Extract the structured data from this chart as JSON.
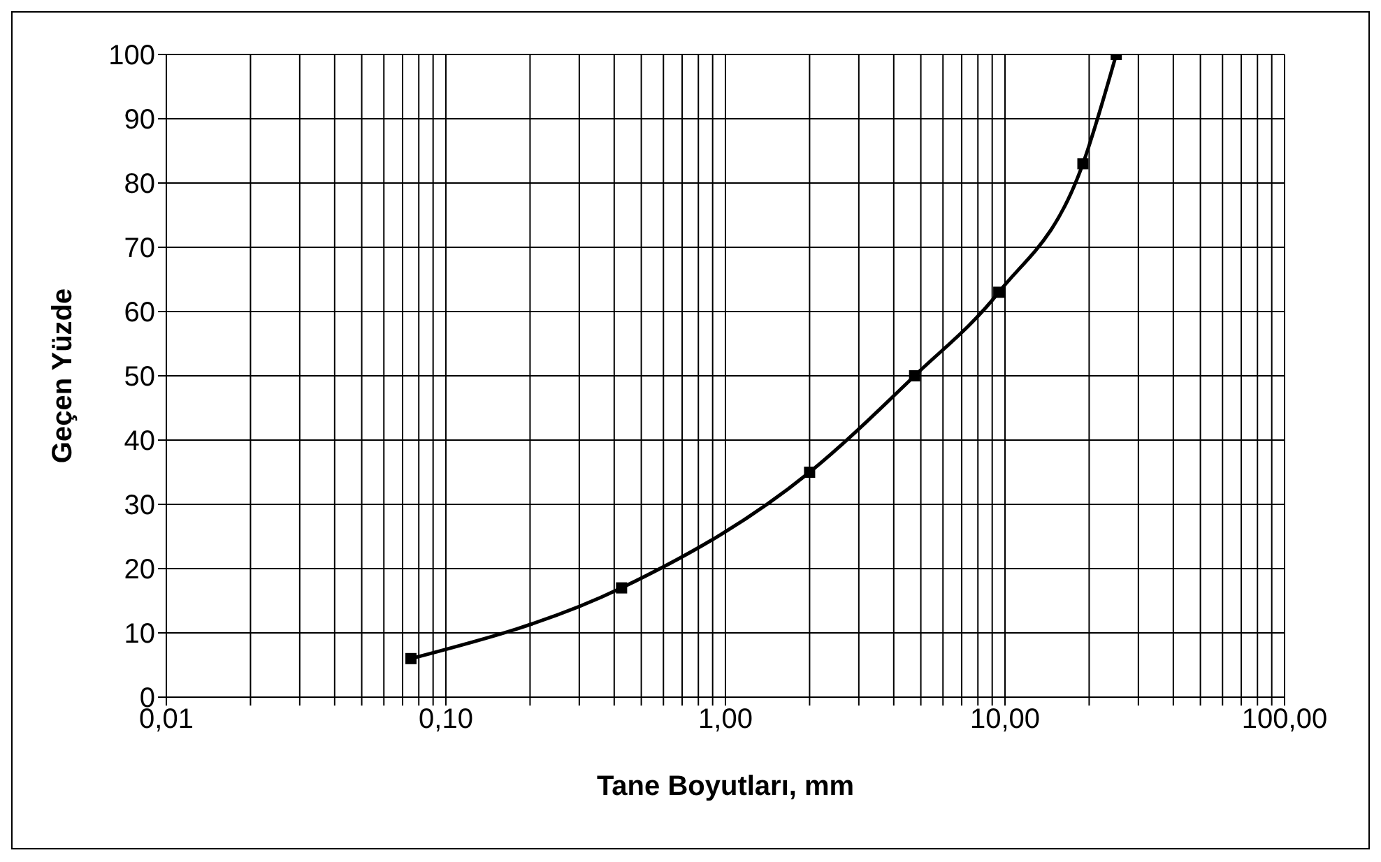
{
  "chart_data": {
    "type": "line",
    "xlabel": "Tane Boyutları, mm",
    "ylabel": "Geçen Yüzde",
    "series": [
      {
        "color": "#000000",
        "x": [
          0.075,
          0.425,
          2,
          4.75,
          9.5,
          19,
          25
        ],
        "values": [
          6,
          17,
          35,
          50,
          63,
          83,
          100
        ]
      }
    ],
    "log": "x",
    "xlim": [
      0.01,
      100
    ],
    "xticks": [
      {
        "value": 0.01,
        "label": "0,01"
      },
      {
        "value": 0.02,
        "label": null
      },
      {
        "value": 0.03,
        "label": null
      },
      {
        "value": 0.04,
        "label": null
      },
      {
        "value": 0.05,
        "label": null
      },
      {
        "value": 0.06,
        "label": null
      },
      {
        "value": 0.07,
        "label": null
      },
      {
        "value": 0.08,
        "label": null
      },
      {
        "value": 0.09,
        "label": null
      },
      {
        "value": 0.1,
        "label": "0,10"
      },
      {
        "value": 0.2,
        "label": null
      },
      {
        "value": 0.3,
        "label": null
      },
      {
        "value": 0.4,
        "label": null
      },
      {
        "value": 0.5,
        "label": null
      },
      {
        "value": 0.6,
        "label": null
      },
      {
        "value": 0.7,
        "label": null
      },
      {
        "value": 0.8,
        "label": null
      },
      {
        "value": 0.9,
        "label": null
      },
      {
        "value": 1,
        "label": "1,00"
      },
      {
        "value": 2,
        "label": null
      },
      {
        "value": 3,
        "label": null
      },
      {
        "value": 4,
        "label": null
      },
      {
        "value": 5,
        "label": null
      },
      {
        "value": 6,
        "label": null
      },
      {
        "value": 7,
        "label": null
      },
      {
        "value": 8,
        "label": null
      },
      {
        "value": 9,
        "label": null
      },
      {
        "value": 10,
        "label": "10,00"
      },
      {
        "value": 20,
        "label": null
      },
      {
        "value": 30,
        "label": null
      },
      {
        "value": 40,
        "label": null
      },
      {
        "value": 50,
        "label": null
      },
      {
        "value": 60,
        "label": null
      },
      {
        "value": 70,
        "label": null
      },
      {
        "value": 80,
        "label": null
      },
      {
        "value": 90,
        "label": null
      },
      {
        "value": 100,
        "label": "100,00"
      }
    ],
    "ylim": [
      0,
      100
    ],
    "yticks": [
      0,
      10,
      20,
      30,
      40,
      50,
      60,
      70,
      80,
      90,
      100
    ],
    "grid": true,
    "marker": "square",
    "line_style": "solid"
  }
}
